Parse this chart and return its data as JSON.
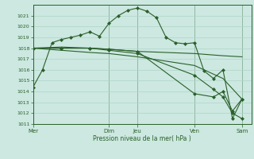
{
  "background_color": "#cce8e0",
  "grid_color": "#b0d4c8",
  "line_color": "#2a5f2a",
  "title": "Pression niveau de la mer( hPa )",
  "ylim": [
    1011,
    1022
  ],
  "yticks": [
    1011,
    1012,
    1013,
    1014,
    1015,
    1016,
    1017,
    1018,
    1019,
    1020,
    1021
  ],
  "x_day_labels": [
    "Mer",
    "Dim",
    "Jeu",
    "Ven",
    "Sam"
  ],
  "x_day_positions": [
    0,
    8,
    11,
    17,
    22
  ],
  "xlim": [
    0,
    23
  ],
  "series1_x": [
    0,
    1,
    2,
    3,
    4,
    5,
    6,
    7,
    8,
    9,
    10,
    11,
    12,
    13,
    14,
    15,
    16,
    17,
    18,
    19,
    20,
    21,
    22
  ],
  "series1_y": [
    1014.4,
    1016.0,
    1018.5,
    1018.8,
    1019.0,
    1019.2,
    1019.5,
    1019.1,
    1020.3,
    1021.0,
    1021.5,
    1021.7,
    1021.4,
    1020.8,
    1019.0,
    1018.5,
    1018.4,
    1018.5,
    1015.9,
    1015.2,
    1016.0,
    1011.5,
    1013.3
  ],
  "series2_x": [
    0,
    3,
    6,
    8,
    11,
    14,
    17,
    20,
    22
  ],
  "series2_y": [
    1018.0,
    1018.1,
    1018.0,
    1017.9,
    1017.7,
    1017.6,
    1017.5,
    1017.3,
    1017.2
  ],
  "series3_x": [
    0,
    3,
    6,
    8,
    11,
    14,
    17,
    20,
    22
  ],
  "series3_y": [
    1018.0,
    1017.8,
    1017.6,
    1017.5,
    1017.2,
    1016.8,
    1016.4,
    1015.2,
    1013.3
  ],
  "series4_x": [
    0,
    3,
    6,
    8,
    11,
    17,
    19,
    20,
    21,
    22
  ],
  "series4_y": [
    1018.0,
    1018.0,
    1018.0,
    1017.8,
    1017.5,
    1015.5,
    1014.2,
    1013.5,
    1012.0,
    1011.5
  ],
  "series5_x": [
    0,
    3,
    6,
    8,
    11,
    17,
    19,
    20,
    21,
    22
  ],
  "series5_y": [
    1018.0,
    1018.0,
    1018.0,
    1017.9,
    1017.7,
    1013.8,
    1013.5,
    1014.0,
    1012.2,
    1013.3
  ]
}
